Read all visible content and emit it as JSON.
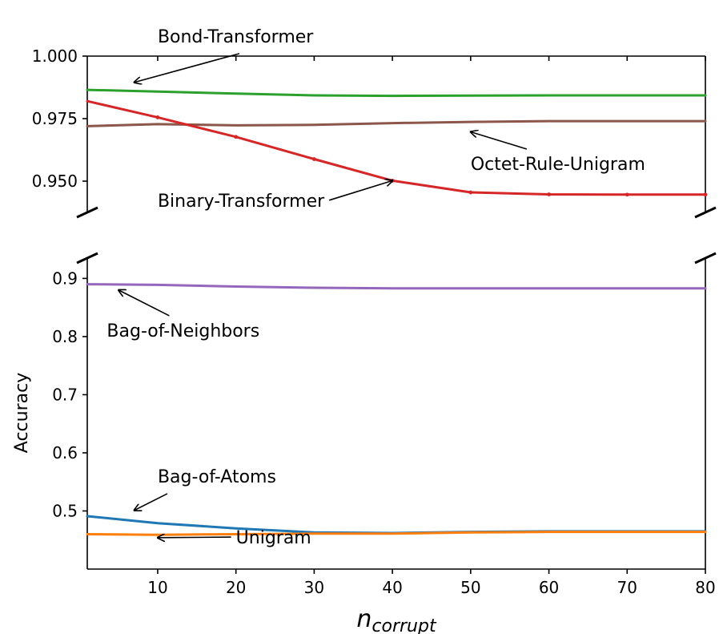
{
  "chart_data": {
    "type": "line",
    "broken_y_axis": true,
    "ylabel": "Accuracy",
    "xlabel": {
      "main": "n",
      "subscript": "corrupt"
    },
    "xlim": [
      1,
      80
    ],
    "x_ticks": [
      10,
      20,
      30,
      40,
      50,
      60,
      70,
      80
    ],
    "panels": [
      {
        "name": "top",
        "ylim": [
          0.9375,
          1.0
        ],
        "y_ticks": [
          0.95,
          0.975,
          1.0
        ],
        "y_tick_labels": [
          "0.950",
          "0.975",
          "1.000"
        ]
      },
      {
        "name": "bottom",
        "ylim": [
          0.4,
          0.935
        ],
        "y_ticks": [
          0.5,
          0.6,
          0.7,
          0.8,
          0.9
        ],
        "y_tick_labels": [
          "0.5",
          "0.6",
          "0.7",
          "0.8",
          "0.9"
        ]
      }
    ],
    "x": [
      1,
      10,
      20,
      30,
      40,
      50,
      60,
      70,
      80
    ],
    "series": [
      {
        "name": "Bond-Transformer",
        "color": "#2ca02c",
        "panel": "top",
        "values": [
          0.9865,
          0.9858,
          0.985,
          0.9843,
          0.9841,
          0.9842,
          0.9843,
          0.9843,
          0.9843
        ]
      },
      {
        "name": "Octet-Rule-Unigram",
        "color": "#8c564b",
        "panel": "top",
        "values": [
          0.972,
          0.9728,
          0.9723,
          0.9725,
          0.9732,
          0.9737,
          0.974,
          0.974,
          0.974
        ]
      },
      {
        "name": "Binary-Transformer",
        "color": "#d62728",
        "panel": "top",
        "markers": true,
        "values": [
          0.982,
          0.9755,
          0.9677,
          0.9588,
          0.9502,
          0.9455,
          0.9447,
          0.9446,
          0.9446
        ]
      },
      {
        "name": "Bag-of-Neighbors",
        "color": "#9467bd",
        "panel": "bottom",
        "values": [
          0.89,
          0.889,
          0.886,
          0.884,
          0.883,
          0.883,
          0.883,
          0.883,
          0.883
        ]
      },
      {
        "name": "Bag-of-Atoms",
        "color": "#1f77b4",
        "panel": "bottom",
        "values": [
          0.491,
          0.479,
          0.47,
          0.463,
          0.462,
          0.464,
          0.465,
          0.465,
          0.465
        ]
      },
      {
        "name": "Unigram",
        "color": "#ff7f0e",
        "panel": "bottom",
        "values": [
          0.46,
          0.459,
          0.46,
          0.461,
          0.461,
          0.463,
          0.464,
          0.464,
          0.464
        ]
      }
    ],
    "annotations": [
      {
        "text": "Bond-Transformer",
        "panel": "top",
        "text_x": 10,
        "text_y": 1.0055,
        "point_x": 7,
        "point_y": 0.9895
      },
      {
        "text": "Octet-Rule-Unigram",
        "panel": "top",
        "text_x": 50,
        "text_y": 0.9545,
        "point_x": 50,
        "point_y": 0.9697
      },
      {
        "text": "Binary-Transformer",
        "panel": "top",
        "text_x": 10,
        "text_y": 0.9398,
        "point_x": 40,
        "point_y": 0.9502
      },
      {
        "text": "Bag-of-Neighbors",
        "panel": "bottom",
        "text_x": 3.5,
        "text_y": 0.8,
        "point_x": 5,
        "point_y": 0.88
      },
      {
        "text": "Bag-of-Atoms",
        "panel": "bottom",
        "text_x": 10,
        "text_y": 0.549,
        "point_x": 7,
        "point_y": 0.501
      },
      {
        "text": "Unigram",
        "panel": "bottom",
        "text_x": 20,
        "text_y": 0.444,
        "point_x": 10,
        "point_y": 0.454
      }
    ]
  }
}
